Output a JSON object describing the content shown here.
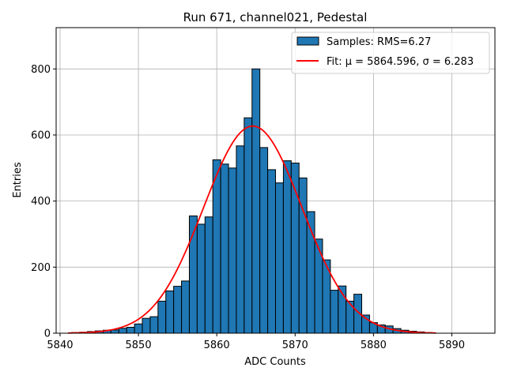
{
  "chart_data": {
    "type": "bar",
    "title": "Run 671, channel021, Pedestal",
    "xlabel": "ADC Counts",
    "ylabel": "Entries",
    "xlim": [
      5839.5,
      5895.5
    ],
    "ylim": [
      0,
      925
    ],
    "xticks": [
      5840,
      5850,
      5860,
      5870,
      5880,
      5890
    ],
    "yticks": [
      0,
      200,
      400,
      600,
      800
    ],
    "grid": true,
    "legend_position": "top-right",
    "histogram": {
      "name": "Samples: RMS=6.27",
      "color": "#1f77b4",
      "bin_width": 1,
      "bin_centers": [
        5842,
        5843,
        5844,
        5845,
        5846,
        5847,
        5848,
        5849,
        5850,
        5851,
        5852,
        5853,
        5854,
        5855,
        5856,
        5857,
        5858,
        5859,
        5860,
        5861,
        5862,
        5863,
        5864,
        5865,
        5866,
        5867,
        5868,
        5869,
        5870,
        5871,
        5872,
        5873,
        5874,
        5875,
        5876,
        5877,
        5878,
        5879,
        5880,
        5881,
        5882,
        5883,
        5884,
        5885,
        5886,
        5887
      ],
      "values": [
        2,
        3,
        5,
        7,
        9,
        10,
        15,
        18,
        28,
        45,
        50,
        97,
        128,
        142,
        158,
        355,
        330,
        352,
        525,
        512,
        500,
        567,
        652,
        800,
        562,
        495,
        455,
        522,
        515,
        470,
        368,
        285,
        222,
        130,
        143,
        97,
        118,
        55,
        32,
        25,
        22,
        14,
        9,
        6,
        4,
        2
      ]
    },
    "fit": {
      "name": "Fit: μ = 5864.596, σ = 6.283",
      "color": "#ff0000",
      "mu": 5864.596,
      "sigma": 6.283,
      "amplitude": 627,
      "x_range": [
        5841,
        5888
      ]
    }
  }
}
